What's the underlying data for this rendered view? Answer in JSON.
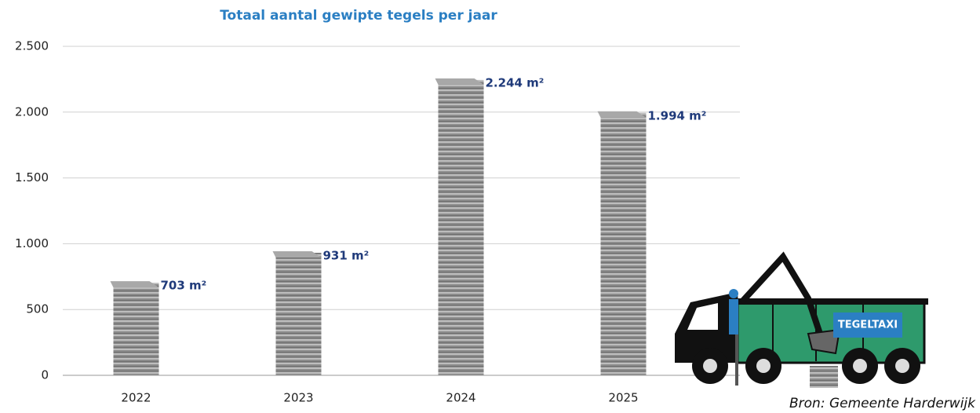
{
  "chart_data": {
    "type": "bar",
    "title": "Totaal aantal gewipte tegels per jaar",
    "categories": [
      "2022",
      "2023",
      "2024",
      "2025"
    ],
    "values": [
      703,
      931,
      2244,
      1994
    ],
    "value_labels": [
      "703 m²",
      "931 m²",
      "2.244 m²",
      "1.994 m²"
    ],
    "color": "#8c8c8c",
    "ylim": [
      0,
      2500
    ],
    "yticks": [
      0,
      500,
      {
        "value": 1000,
        "label": "1.000"
      },
      {
        "value": 1500,
        "label": "1.500"
      },
      {
        "value": 2000,
        "label": "2.000"
      },
      {
        "value": 2500,
        "label": "2.500"
      }
    ],
    "grid": true,
    "illustration_label": "TEGELTAXI",
    "source": "Bron: Gemeente Harderwijk"
  }
}
